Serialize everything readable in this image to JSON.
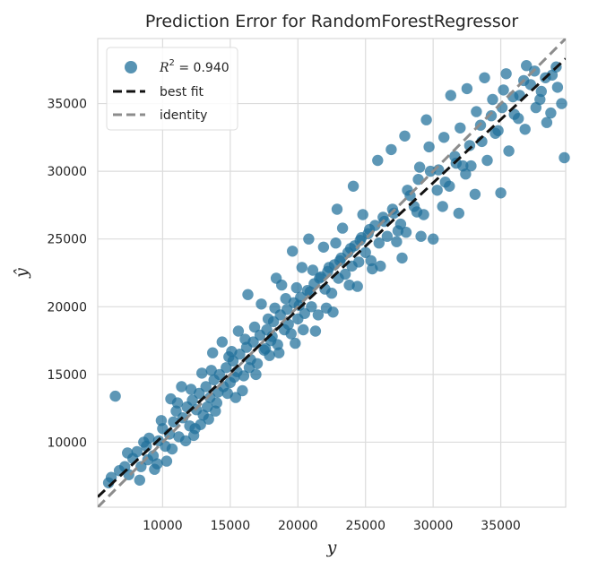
{
  "chart_data": {
    "type": "scatter",
    "title": "Prediction Error for RandomForestRegressor",
    "xlabel": "y",
    "ylabel": "ŷ",
    "xlim": [
      5200,
      39800
    ],
    "ylim": [
      5200,
      39800
    ],
    "xticks": [
      10000,
      15000,
      20000,
      25000,
      30000,
      35000
    ],
    "yticks": [
      10000,
      15000,
      20000,
      25000,
      30000,
      35000
    ],
    "xtick_labels": [
      "10000",
      "15000",
      "20000",
      "25000",
      "30000",
      "35000"
    ],
    "ytick_labels": [
      "10000",
      "15000",
      "20000",
      "25000",
      "30000",
      "35000"
    ],
    "grid": true,
    "legend_position": "top-left",
    "legend": [
      {
        "label_prefix": "R",
        "label_sup": "2",
        "label_suffix": " = 0.940",
        "kind": "marker",
        "color": "#1f6f9a"
      },
      {
        "label": "best fit",
        "kind": "line",
        "color": "#111111",
        "dash": "dashed"
      },
      {
        "label": "identity",
        "kind": "line",
        "color": "#8c8c8c",
        "dash": "dashed"
      }
    ],
    "points_color": "#1f6f9a",
    "best_fit": {
      "slope": 0.935,
      "intercept": 1100
    },
    "identity": {
      "slope": 1.0,
      "intercept": 0
    },
    "points": [
      [
        6500,
        13400
      ],
      [
        6000,
        7000
      ],
      [
        6200,
        7400
      ],
      [
        6800,
        7900
      ],
      [
        7200,
        8200
      ],
      [
        7500,
        7600
      ],
      [
        7800,
        8800
      ],
      [
        8100,
        9300
      ],
      [
        8400,
        8200
      ],
      [
        8800,
        9700
      ],
      [
        9000,
        10300
      ],
      [
        9300,
        9000
      ],
      [
        9700,
        10100
      ],
      [
        10000,
        11000
      ],
      [
        10200,
        9700
      ],
      [
        10500,
        10600
      ],
      [
        10800,
        11500
      ],
      [
        11000,
        12300
      ],
      [
        11200,
        10400
      ],
      [
        11500,
        11800
      ],
      [
        11800,
        12600
      ],
      [
        12000,
        11200
      ],
      [
        12200,
        13100
      ],
      [
        12500,
        12400
      ],
      [
        12700,
        13600
      ],
      [
        13000,
        12000
      ],
      [
        13200,
        14100
      ],
      [
        13500,
        13300
      ],
      [
        13800,
        14600
      ],
      [
        14000,
        12900
      ],
      [
        14200,
        15000
      ],
      [
        14500,
        14100
      ],
      [
        14700,
        15500
      ],
      [
        15000,
        14400
      ],
      [
        15200,
        16000
      ],
      [
        15500,
        15200
      ],
      [
        15700,
        16500
      ],
      [
        16000,
        14900
      ],
      [
        16200,
        17000
      ],
      [
        16500,
        16100
      ],
      [
        16700,
        17400
      ],
      [
        17000,
        15800
      ],
      [
        17200,
        17900
      ],
      [
        17500,
        16800
      ],
      [
        17700,
        18300
      ],
      [
        18000,
        17500
      ],
      [
        18200,
        18900
      ],
      [
        18500,
        17200
      ],
      [
        18700,
        19400
      ],
      [
        19000,
        18300
      ],
      [
        19200,
        19800
      ],
      [
        19500,
        18000
      ],
      [
        19700,
        20300
      ],
      [
        20000,
        19100
      ],
      [
        20200,
        20700
      ],
      [
        20500,
        19500
      ],
      [
        20700,
        21200
      ],
      [
        21000,
        20000
      ],
      [
        21200,
        21700
      ],
      [
        21500,
        19400
      ],
      [
        21700,
        22200
      ],
      [
        22000,
        21300
      ],
      [
        22200,
        22600
      ],
      [
        22500,
        21000
      ],
      [
        22700,
        23100
      ],
      [
        23000,
        22100
      ],
      [
        23200,
        23600
      ],
      [
        23500,
        22400
      ],
      [
        23700,
        24000
      ],
      [
        24000,
        23000
      ],
      [
        24200,
        24500
      ],
      [
        24500,
        23300
      ],
      [
        24700,
        25100
      ],
      [
        25000,
        24000
      ],
      [
        25200,
        25400
      ],
      [
        25500,
        22800
      ],
      [
        25700,
        26000
      ],
      [
        26000,
        24700
      ],
      [
        26300,
        26600
      ],
      [
        26600,
        25200
      ],
      [
        27000,
        27200
      ],
      [
        27300,
        24800
      ],
      [
        27600,
        26100
      ],
      [
        28000,
        25500
      ],
      [
        28300,
        28200
      ],
      [
        28600,
        27400
      ],
      [
        29000,
        30300
      ],
      [
        29300,
        26800
      ],
      [
        29700,
        31800
      ],
      [
        30000,
        25000
      ],
      [
        30400,
        30100
      ],
      [
        30800,
        32500
      ],
      [
        31200,
        28900
      ],
      [
        31600,
        31100
      ],
      [
        32000,
        33200
      ],
      [
        32400,
        29800
      ],
      [
        32800,
        30400
      ],
      [
        33200,
        34400
      ],
      [
        33600,
        32200
      ],
      [
        34000,
        30800
      ],
      [
        34400,
        35300
      ],
      [
        34800,
        33000
      ],
      [
        35200,
        36000
      ],
      [
        35600,
        31500
      ],
      [
        36000,
        34200
      ],
      [
        36400,
        35600
      ],
      [
        36800,
        33100
      ],
      [
        37200,
        36400
      ],
      [
        37600,
        34700
      ],
      [
        38000,
        35900
      ],
      [
        38400,
        33600
      ],
      [
        38800,
        37100
      ],
      [
        39200,
        36200
      ],
      [
        39500,
        35000
      ],
      [
        39700,
        31000
      ],
      [
        9600,
        8400
      ],
      [
        8900,
        8700
      ],
      [
        12300,
        10500
      ],
      [
        13400,
        11700
      ],
      [
        14800,
        13600
      ],
      [
        15900,
        13800
      ],
      [
        17900,
        16400
      ],
      [
        19800,
        17300
      ],
      [
        21300,
        18200
      ],
      [
        22600,
        19600
      ],
      [
        24400,
        21500
      ],
      [
        26100,
        23000
      ],
      [
        27700,
        23600
      ],
      [
        29100,
        25200
      ],
      [
        30700,
        27400
      ],
      [
        31900,
        26900
      ],
      [
        33100,
        28300
      ],
      [
        35000,
        28400
      ],
      [
        16300,
        20900
      ],
      [
        18400,
        22100
      ],
      [
        19600,
        24100
      ],
      [
        20800,
        25000
      ],
      [
        22900,
        27200
      ],
      [
        24100,
        28900
      ],
      [
        25900,
        30800
      ],
      [
        26900,
        31600
      ],
      [
        27900,
        32600
      ],
      [
        29500,
        33800
      ],
      [
        31300,
        35600
      ],
      [
        32500,
        36100
      ],
      [
        33800,
        36900
      ],
      [
        35400,
        37200
      ],
      [
        36900,
        37800
      ],
      [
        11400,
        14100
      ],
      [
        12900,
        15100
      ],
      [
        10600,
        13200
      ],
      [
        13700,
        16600
      ],
      [
        14400,
        17400
      ],
      [
        15600,
        18200
      ],
      [
        17300,
        20200
      ],
      [
        18800,
        21600
      ],
      [
        20300,
        22900
      ],
      [
        21900,
        24400
      ],
      [
        23300,
        25800
      ],
      [
        24800,
        26800
      ],
      [
        10300,
        8600
      ],
      [
        11700,
        10100
      ],
      [
        12800,
        11300
      ],
      [
        13300,
        12600
      ],
      [
        14100,
        13700
      ],
      [
        15300,
        14800
      ],
      [
        16400,
        15500
      ],
      [
        17600,
        16900
      ],
      [
        18100,
        17800
      ],
      [
        19300,
        18700
      ],
      [
        20100,
        20100
      ],
      [
        20900,
        21100
      ],
      [
        21600,
        22100
      ],
      [
        22300,
        22900
      ],
      [
        23100,
        23400
      ],
      [
        23900,
        24300
      ],
      [
        24600,
        24900
      ],
      [
        25300,
        25700
      ],
      [
        26400,
        26300
      ],
      [
        27100,
        26900
      ],
      [
        28100,
        28600
      ],
      [
        28900,
        29400
      ],
      [
        29800,
        30000
      ],
      [
        30900,
        29200
      ],
      [
        31700,
        30600
      ],
      [
        32700,
        31900
      ],
      [
        33500,
        33400
      ],
      [
        34300,
        34100
      ],
      [
        35100,
        34700
      ],
      [
        35900,
        35500
      ],
      [
        36700,
        36700
      ],
      [
        37500,
        37400
      ],
      [
        38300,
        36900
      ],
      [
        39100,
        37700
      ],
      [
        15100,
        16700
      ],
      [
        16800,
        18500
      ],
      [
        18300,
        19900
      ],
      [
        19900,
        21400
      ],
      [
        21100,
        22700
      ],
      [
        22800,
        24700
      ],
      [
        7400,
        9200
      ],
      [
        8600,
        10000
      ],
      [
        9900,
        11600
      ],
      [
        11100,
        12900
      ],
      [
        12100,
        13900
      ],
      [
        13600,
        15300
      ],
      [
        14900,
        16300
      ],
      [
        16100,
        17600
      ],
      [
        17800,
        19100
      ],
      [
        19100,
        20600
      ],
      [
        8300,
        7200
      ],
      [
        9400,
        8000
      ],
      [
        10700,
        9500
      ],
      [
        12400,
        11000
      ],
      [
        13900,
        12300
      ],
      [
        15400,
        13300
      ],
      [
        16900,
        15000
      ],
      [
        18600,
        16600
      ],
      [
        20400,
        18300
      ],
      [
        22100,
        19900
      ],
      [
        23800,
        21600
      ],
      [
        25400,
        23400
      ],
      [
        27400,
        25600
      ],
      [
        28800,
        27000
      ],
      [
        30300,
        28600
      ],
      [
        32200,
        30400
      ],
      [
        34600,
        32800
      ],
      [
        36300,
        33900
      ],
      [
        37900,
        35300
      ],
      [
        38700,
        34300
      ]
    ]
  }
}
